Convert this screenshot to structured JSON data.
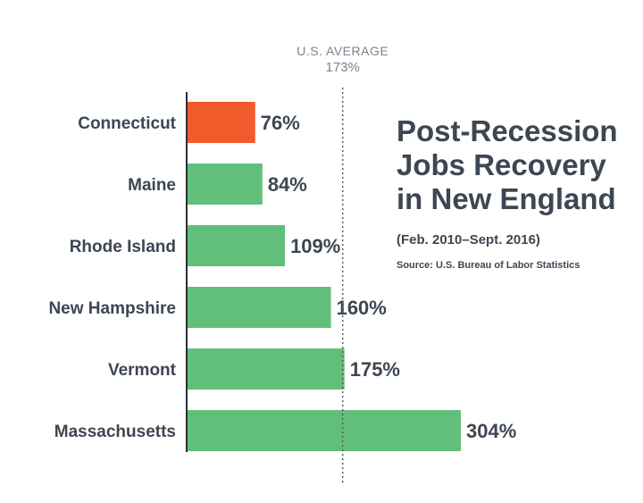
{
  "chart_data": {
    "type": "bar",
    "orientation": "horizontal",
    "title": "Post-Recession Jobs Recovery in New England",
    "subtitle": "(Feb. 2010–Sept. 2016)",
    "source": "Source: U.S. Bureau of Labor Statistics",
    "categories": [
      "Connecticut",
      "Maine",
      "Rhode Island",
      "New Hampshire",
      "Vermont",
      "Massachusetts"
    ],
    "values": [
      76,
      84,
      109,
      160,
      175,
      304
    ],
    "value_labels": [
      "76%",
      "84%",
      "109%",
      "160%",
      "175%",
      "304%"
    ],
    "highlight": "Connecticut",
    "colors": {
      "bar": "#62bf7a",
      "highlight": "#f15a2b",
      "text": "#3d4652",
      "reference": "#7b8590"
    },
    "reference_line": {
      "label": "U.S. AVERAGE",
      "value": 173,
      "value_label": "173%"
    },
    "xlim": [
      0,
      304
    ],
    "grid": false,
    "legend": "none"
  }
}
